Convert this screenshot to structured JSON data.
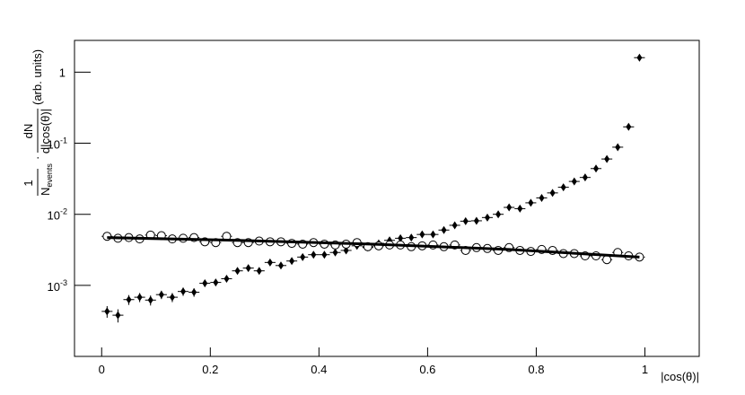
{
  "chart_data": {
    "type": "scatter",
    "log_y": true,
    "xlim": [
      -0.05,
      1.1
    ],
    "ylim": [
      0.0001,
      2.8
    ],
    "xticks": [
      0,
      0.2,
      0.4,
      0.6,
      0.8,
      1
    ],
    "yticks": [
      {
        "value": 0.001,
        "label": "10",
        "exponent": "-3"
      },
      {
        "value": 0.01,
        "label": "10",
        "exponent": "-2"
      },
      {
        "value": 0.1,
        "label": "10",
        "exponent": "-1"
      },
      1
    ],
    "x_label": "|cos(θ)|",
    "y_label": {
      "num1": "1",
      "den1": "N",
      "den1_sub": "events",
      "dot": "·",
      "num2": "dN",
      "den2": "d|cos(θ)|",
      "units": "(arb. units)"
    },
    "x": [
      0.01,
      0.03,
      0.05,
      0.07,
      0.09,
      0.11,
      0.13,
      0.15,
      0.17,
      0.19,
      0.21,
      0.23,
      0.25,
      0.27,
      0.29,
      0.31,
      0.33,
      0.35,
      0.37,
      0.39,
      0.41,
      0.43,
      0.45,
      0.47,
      0.49,
      0.51,
      0.53,
      0.55,
      0.57,
      0.59,
      0.61,
      0.63,
      0.65,
      0.67,
      0.69,
      0.71,
      0.73,
      0.75,
      0.77,
      0.79,
      0.81,
      0.83,
      0.85,
      0.87,
      0.89,
      0.91,
      0.93,
      0.95,
      0.97,
      0.99
    ],
    "xerr": 0.01,
    "series": [
      {
        "marker": "diamond",
        "color": "#000000",
        "values": [
          0.00043,
          0.00038,
          0.00063,
          0.00068,
          0.00062,
          0.00074,
          0.00068,
          0.00082,
          0.0008,
          0.00107,
          0.0011,
          0.00124,
          0.0016,
          0.00175,
          0.0016,
          0.0021,
          0.0019,
          0.0022,
          0.0025,
          0.0027,
          0.0027,
          0.0029,
          0.0031,
          0.0036,
          0.0034,
          0.0039,
          0.0043,
          0.0046,
          0.0047,
          0.0052,
          0.0052,
          0.006,
          0.007,
          0.008,
          0.0081,
          0.009,
          0.01,
          0.0125,
          0.012,
          0.0145,
          0.017,
          0.02,
          0.024,
          0.029,
          0.033,
          0.044,
          0.06,
          0.088,
          0.17,
          1.6
        ],
        "errors": [
          8e-05,
          8e-05,
          0.0001,
          0.0001,
          0.0001,
          0.0001,
          0.0001,
          0.00011,
          0.00011,
          0.00012,
          0.00012,
          0.00013,
          0.00015,
          0.00015,
          0.00015,
          0.00017,
          0.00016,
          0.00017,
          0.00018,
          0.00019,
          0.00019,
          0.0002,
          0.0002,
          0.00022,
          0.00021,
          0.00023,
          0.00024,
          0.00025,
          0.00025,
          0.00026,
          0.00026,
          0.00028,
          0.0003,
          0.00032,
          0.00032,
          0.00034,
          0.00036,
          0.0004,
          0.0004,
          0.00044,
          0.00048,
          0.00052,
          0.0006,
          0.0007,
          0.0008,
          0.0009,
          0.0012,
          0.0016,
          0.003,
          0.02
        ]
      },
      {
        "marker": "circle",
        "color": "#000000",
        "values": [
          0.0049,
          0.0046,
          0.0047,
          0.0045,
          0.0051,
          0.005,
          0.0045,
          0.0046,
          0.0047,
          0.0041,
          0.004,
          0.0049,
          0.004,
          0.004,
          0.0042,
          0.0041,
          0.0041,
          0.0039,
          0.0038,
          0.004,
          0.0038,
          0.0037,
          0.0038,
          0.004,
          0.0035,
          0.0036,
          0.0037,
          0.0037,
          0.0035,
          0.0036,
          0.0037,
          0.0035,
          0.0037,
          0.0031,
          0.0034,
          0.0033,
          0.0031,
          0.0034,
          0.0031,
          0.003,
          0.0032,
          0.0031,
          0.0028,
          0.0028,
          0.0026,
          0.0026,
          0.0023,
          0.0029,
          0.0026,
          0.0025
        ]
      }
    ],
    "fit": {
      "color": "#000000",
      "x": [
        0.01,
        0.25,
        0.5,
        0.75,
        0.99
      ],
      "values": [
        0.0047,
        0.0043,
        0.0038,
        0.0032,
        0.0025
      ]
    }
  }
}
